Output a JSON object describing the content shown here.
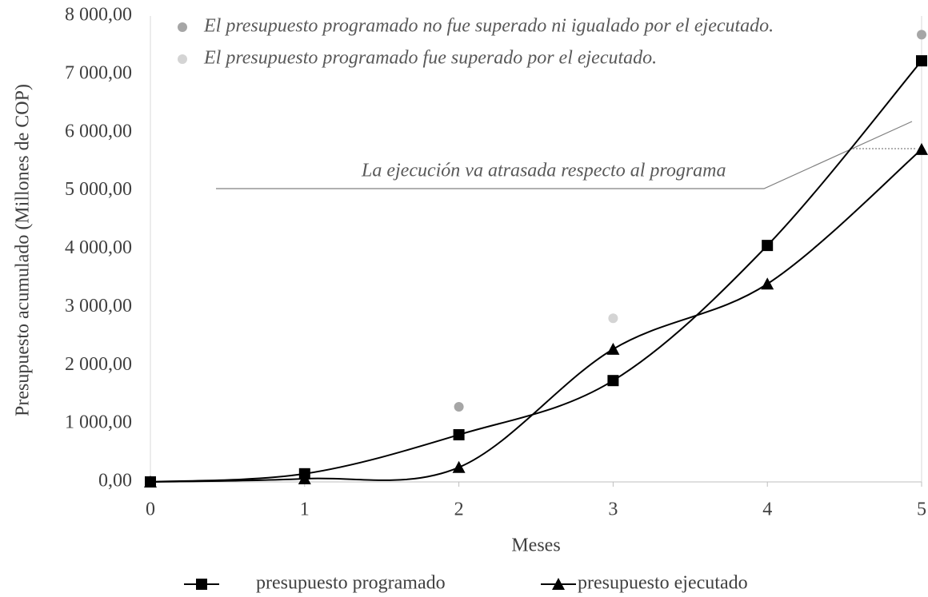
{
  "chart_data": {
    "type": "line",
    "x_label": "Meses",
    "y_label": "Presupuesto acumulado (Millones de COP)",
    "annotation": "La ejecución va atrasada respecto al programa",
    "x": [
      0,
      1,
      2,
      3,
      4,
      5
    ],
    "series": [
      {
        "name": "presupuesto programado",
        "color": "#000000",
        "marker": "square",
        "values": [
          0,
          140,
          810,
          1740,
          4060,
          7230
        ]
      },
      {
        "name": "presupuesto ejecutado",
        "color": "#000000",
        "marker": "triangle",
        "values": [
          0,
          55,
          250,
          2280,
          3400,
          5710
        ]
      }
    ],
    "indicators": [
      {
        "name": "El presupuesto programado no fue superado ni igualado por el ejecutado.",
        "color": "#a6a6a6",
        "x": [
          2,
          5
        ],
        "values": [
          1290,
          7680
        ]
      },
      {
        "name": "El presupuesto programado fue superado por el ejecutado.",
        "color": "#d4d4d4",
        "x": [
          3
        ],
        "values": [
          2810
        ]
      }
    ],
    "xlim": [
      0,
      5
    ],
    "xticks": [
      0,
      1,
      2,
      3,
      4,
      5
    ],
    "ylim": [
      0,
      8000
    ],
    "yticks": [
      {
        "value": 0,
        "label": "0,00"
      },
      {
        "value": 1000,
        "label": "1 000,00"
      },
      {
        "value": 2000,
        "label": "2 000,00"
      },
      {
        "value": 3000,
        "label": "3 000,00"
      },
      {
        "value": 4000,
        "label": "4 000,00"
      },
      {
        "value": 5000,
        "label": "5 000,00"
      },
      {
        "value": 6000,
        "label": "6 000,00"
      },
      {
        "value": 7000,
        "label": "7 000,00"
      },
      {
        "value": 8000,
        "label": "8 000,00"
      }
    ],
    "grid": false
  }
}
